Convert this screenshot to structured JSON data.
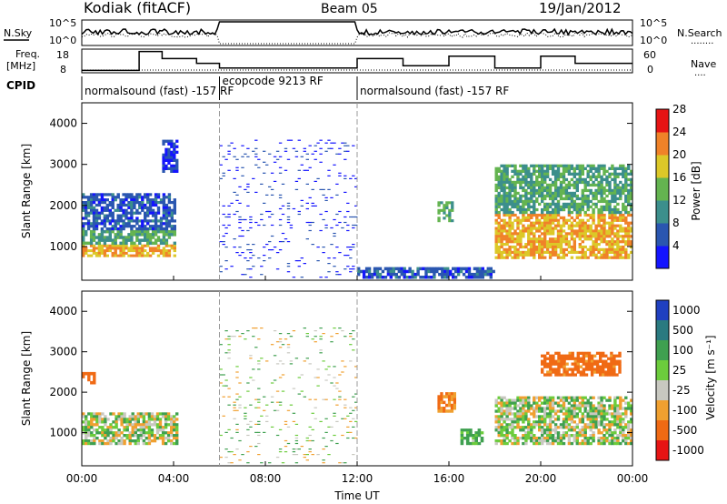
{
  "header": {
    "station": "Kodiak (fitACF)",
    "beam": "Beam 05",
    "date": "19/Jan/2012"
  },
  "top_panels": {
    "nsky_label": "N.Sky",
    "nsearch_label": "N.Search",
    "nsearch_legend": "........",
    "nsky_ticks": [
      "10^5",
      "10^0"
    ],
    "nsearch_ticks": [
      "10^5",
      "10^0"
    ],
    "freq_label_1": "Freq.",
    "freq_label_2": "[MHz]",
    "freq_ticks": [
      "18",
      "8"
    ],
    "nave_label": "Nave",
    "nave_legend": "....",
    "nave_ticks": [
      "60",
      "0"
    ],
    "cpid_label": "CPID",
    "cpid_segments": [
      {
        "start_h": 0,
        "end_h": 6,
        "label": "normalsound (fast) -157 RF"
      },
      {
        "start_h": 6,
        "end_h": 12,
        "label": "ecopcode 9213 RF"
      },
      {
        "start_h": 12,
        "end_h": 24,
        "label": "normalsound (fast) -157 RF"
      }
    ]
  },
  "axes": {
    "xlabel": "Time UT",
    "ylabel": "Slant Range [km]",
    "x_ticks": [
      "00:00",
      "04:00",
      "08:00",
      "12:00",
      "16:00",
      "20:00",
      "00:00"
    ],
    "y_ticks": [
      "1000",
      "2000",
      "3000",
      "4000"
    ]
  },
  "colorbars": {
    "power": {
      "label": "Power [dB]",
      "ticks": [
        "4",
        "8",
        "12",
        "16",
        "20",
        "24",
        "28"
      ],
      "colors": [
        "#1414ff",
        "#2a56b0",
        "#3c8f8c",
        "#64b450",
        "#dcc828",
        "#f08228",
        "#e61414"
      ]
    },
    "velocity": {
      "label": "Velocity [m s⁻¹]",
      "ticks": [
        "1000",
        "500",
        "100",
        "25",
        "-25",
        "-100",
        "-500",
        "-1000"
      ],
      "colors": [
        "#2040c0",
        "#2a7a80",
        "#3fa050",
        "#6ccc3c",
        "#c8c8c0",
        "#f0a030",
        "#f06a14",
        "#e61414"
      ]
    }
  },
  "chart_data": {
    "type": "heatmap",
    "x_range_h": [
      0,
      24
    ],
    "y_range_km": [
      180,
      4500
    ],
    "x_tick_hours": [
      0,
      4,
      8,
      12,
      16,
      20,
      24
    ],
    "y_tick_km": [
      1000,
      2000,
      3000,
      4000
    ],
    "time_dividers_h": [
      6,
      12
    ],
    "frequency_MHz_steps": [
      {
        "start_h": 0,
        "end_h": 2.5,
        "value": 9
      },
      {
        "start_h": 2.5,
        "end_h": 3.5,
        "value": 17
      },
      {
        "start_h": 3.5,
        "end_h": 5,
        "value": 14
      },
      {
        "start_h": 5,
        "end_h": 6,
        "value": 12
      },
      {
        "start_h": 6,
        "end_h": 12,
        "value": 10
      },
      {
        "start_h": 12,
        "end_h": 14,
        "value": 14
      },
      {
        "start_h": 14,
        "end_h": 16,
        "value": 11
      },
      {
        "start_h": 16,
        "end_h": 18,
        "value": 15
      },
      {
        "start_h": 18,
        "end_h": 20,
        "value": 10
      },
      {
        "start_h": 20,
        "end_h": 21.5,
        "value": 15
      },
      {
        "start_h": 21.5,
        "end_h": 24,
        "value": 12
      }
    ],
    "power_panel_regions": [
      {
        "t0": 0,
        "t1": 4.1,
        "r0": 750,
        "r1": 1050,
        "power_dB": 22
      },
      {
        "t0": 0,
        "t1": 4.1,
        "r0": 1050,
        "r1": 1400,
        "power_dB": 14
      },
      {
        "t0": 0,
        "t1": 4.1,
        "r0": 1400,
        "r1": 2300,
        "power_dB": 8
      },
      {
        "t0": 3.5,
        "t1": 4.2,
        "r0": 2800,
        "r1": 3600,
        "power_dB": 6
      },
      {
        "t0": 6,
        "t1": 12,
        "r0": 200,
        "r1": 3600,
        "power_dB": 5
      },
      {
        "t0": 12,
        "t1": 18,
        "r0": 220,
        "r1": 500,
        "power_dB": 8
      },
      {
        "t0": 15.5,
        "t1": 16.2,
        "r0": 1600,
        "r1": 2100,
        "power_dB": 14
      },
      {
        "t0": 18,
        "t1": 24,
        "r0": 700,
        "r1": 1800,
        "power_dB": 22
      },
      {
        "t0": 18,
        "t1": 24,
        "r0": 1800,
        "r1": 3000,
        "power_dB": 14
      }
    ],
    "velocity_panel_regions": [
      {
        "t0": 0,
        "t1": 4.2,
        "r0": 700,
        "r1": 1500,
        "velocity_ms": 0
      },
      {
        "t0": 0,
        "t1": 0.6,
        "r0": 2200,
        "r1": 2500,
        "velocity_ms": -500
      },
      {
        "t0": 6,
        "t1": 12,
        "r0": 200,
        "r1": 3600,
        "velocity_ms": 0
      },
      {
        "t0": 15.5,
        "t1": 16.3,
        "r0": 1500,
        "r1": 2000,
        "velocity_ms": -300
      },
      {
        "t0": 16.5,
        "t1": 17.5,
        "r0": 700,
        "r1": 1100,
        "velocity_ms": 100
      },
      {
        "t0": 18,
        "t1": 24,
        "r0": 700,
        "r1": 1900,
        "velocity_ms": 0
      },
      {
        "t0": 20,
        "t1": 23.5,
        "r0": 2400,
        "r1": 3000,
        "velocity_ms": -400
      }
    ]
  }
}
